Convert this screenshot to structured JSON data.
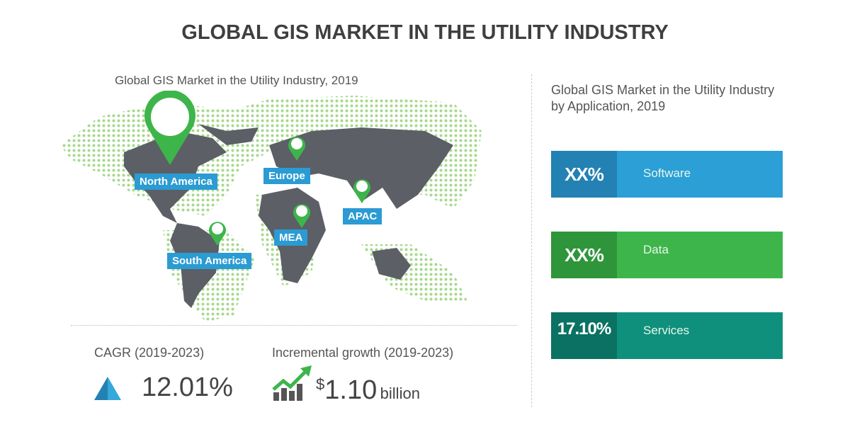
{
  "title": "GLOBAL GIS MARKET IN THE UTILITY INDUSTRY",
  "map": {
    "subtitle": "Global GIS Market in the Utility Industry, 2019",
    "regions": [
      "North America",
      "Europe",
      "APAC",
      "MEA",
      "South America"
    ]
  },
  "stats": {
    "cagr_label": "CAGR (2019-2023)",
    "cagr_value": "12.01%",
    "growth_label": "Incremental growth (2019-2023)",
    "growth_currency": "$",
    "growth_value": "1.10",
    "growth_unit": "billion"
  },
  "application": {
    "heading": "Global GIS Market in the Utility Industry by Application, 2019",
    "segments": [
      {
        "value": "XX%",
        "name": "Software",
        "color": "#2b9fd6",
        "dark": "#2381b3"
      },
      {
        "value": "XX%",
        "name": "Data",
        "color": "#3db54a",
        "dark": "#2f953a"
      },
      {
        "value": "17.10%",
        "name": "Services",
        "color": "#0f907c",
        "dark": "#0b7263"
      }
    ]
  },
  "colors": {
    "label_blue": "#2b9bd3",
    "pin_green": "#3db54a",
    "land_gray": "#5c5f66",
    "dot_green": "#a6d98c"
  }
}
